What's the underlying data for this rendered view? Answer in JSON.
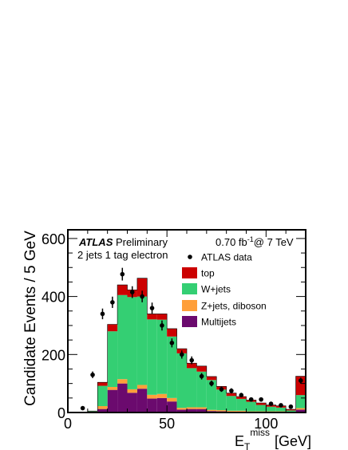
{
  "chart_data": {
    "type": "bar",
    "stacked": true,
    "bin_width": 5,
    "x_edges": [
      0,
      5,
      10,
      15,
      20,
      25,
      30,
      35,
      40,
      45,
      50,
      55,
      60,
      65,
      70,
      75,
      80,
      85,
      90,
      95,
      100,
      105,
      110,
      115,
      120
    ],
    "xlim": [
      0,
      120
    ],
    "ylim": [
      0,
      630
    ],
    "x_ticks": [
      0,
      50,
      100
    ],
    "y_ticks": [
      0,
      200,
      400,
      600
    ],
    "xlabel": {
      "main": "E",
      "sub": "T",
      "sup": "miss",
      "unit": "[GeV]"
    },
    "ylabel": "Candidate Events / 5 GeV",
    "labels": {
      "atlas": "ATLAS",
      "preliminary": "Preliminary",
      "selection": "2 jets 1 tag electron",
      "lumi_prefix": "0.70 fb",
      "lumi_sup": "-1",
      "lumi_suffix": "@ 7 TeV"
    },
    "series": [
      {
        "name": "Multijets",
        "color": "#6b0a6e",
        "values": [
          0,
          0,
          2,
          12,
          78,
          100,
          68,
          82,
          48,
          50,
          38,
          10,
          12,
          12,
          5,
          4,
          3,
          3,
          2,
          2,
          2,
          2,
          1,
          10
        ]
      },
      {
        "name": "Z+jets, diboson",
        "color": "#ff9f3a",
        "values": [
          0,
          0,
          1,
          10,
          10,
          15,
          12,
          13,
          13,
          14,
          12,
          6,
          6,
          6,
          4,
          4,
          3,
          3,
          2,
          2,
          2,
          2,
          1,
          5
        ]
      },
      {
        "name": "W+jets",
        "color": "#34cf73",
        "values": [
          0,
          0,
          1,
          70,
          192,
          290,
          318,
          305,
          260,
          256,
          212,
          188,
          135,
          123,
          103,
          71,
          51,
          41,
          33,
          22,
          16,
          13,
          5,
          45
        ]
      },
      {
        "name": "top",
        "color": "#cc0000",
        "values": [
          0,
          0,
          1,
          12,
          24,
          35,
          25,
          63,
          19,
          20,
          27,
          16,
          17,
          19,
          12,
          11,
          10,
          8,
          6,
          7,
          6,
          6,
          4,
          65
        ]
      }
    ],
    "data": {
      "name": "ATLAS data",
      "x": [
        7.5,
        12.5,
        17.5,
        22.5,
        27.5,
        32.5,
        37.5,
        42.5,
        47.5,
        52.5,
        57.5,
        62.5,
        67.5,
        72.5,
        77.5,
        82.5,
        87.5,
        92.5,
        97.5,
        102.5,
        107.5,
        112.5,
        117.5
      ],
      "y": [
        15,
        130,
        340,
        380,
        477,
        415,
        400,
        360,
        300,
        240,
        200,
        180,
        125,
        100,
        80,
        75,
        60,
        45,
        45,
        30,
        25,
        20,
        110
      ]
    },
    "legend_order": [
      "ATLAS data",
      "top",
      "W+jets",
      "Z+jets, diboson",
      "Multijets"
    ]
  }
}
